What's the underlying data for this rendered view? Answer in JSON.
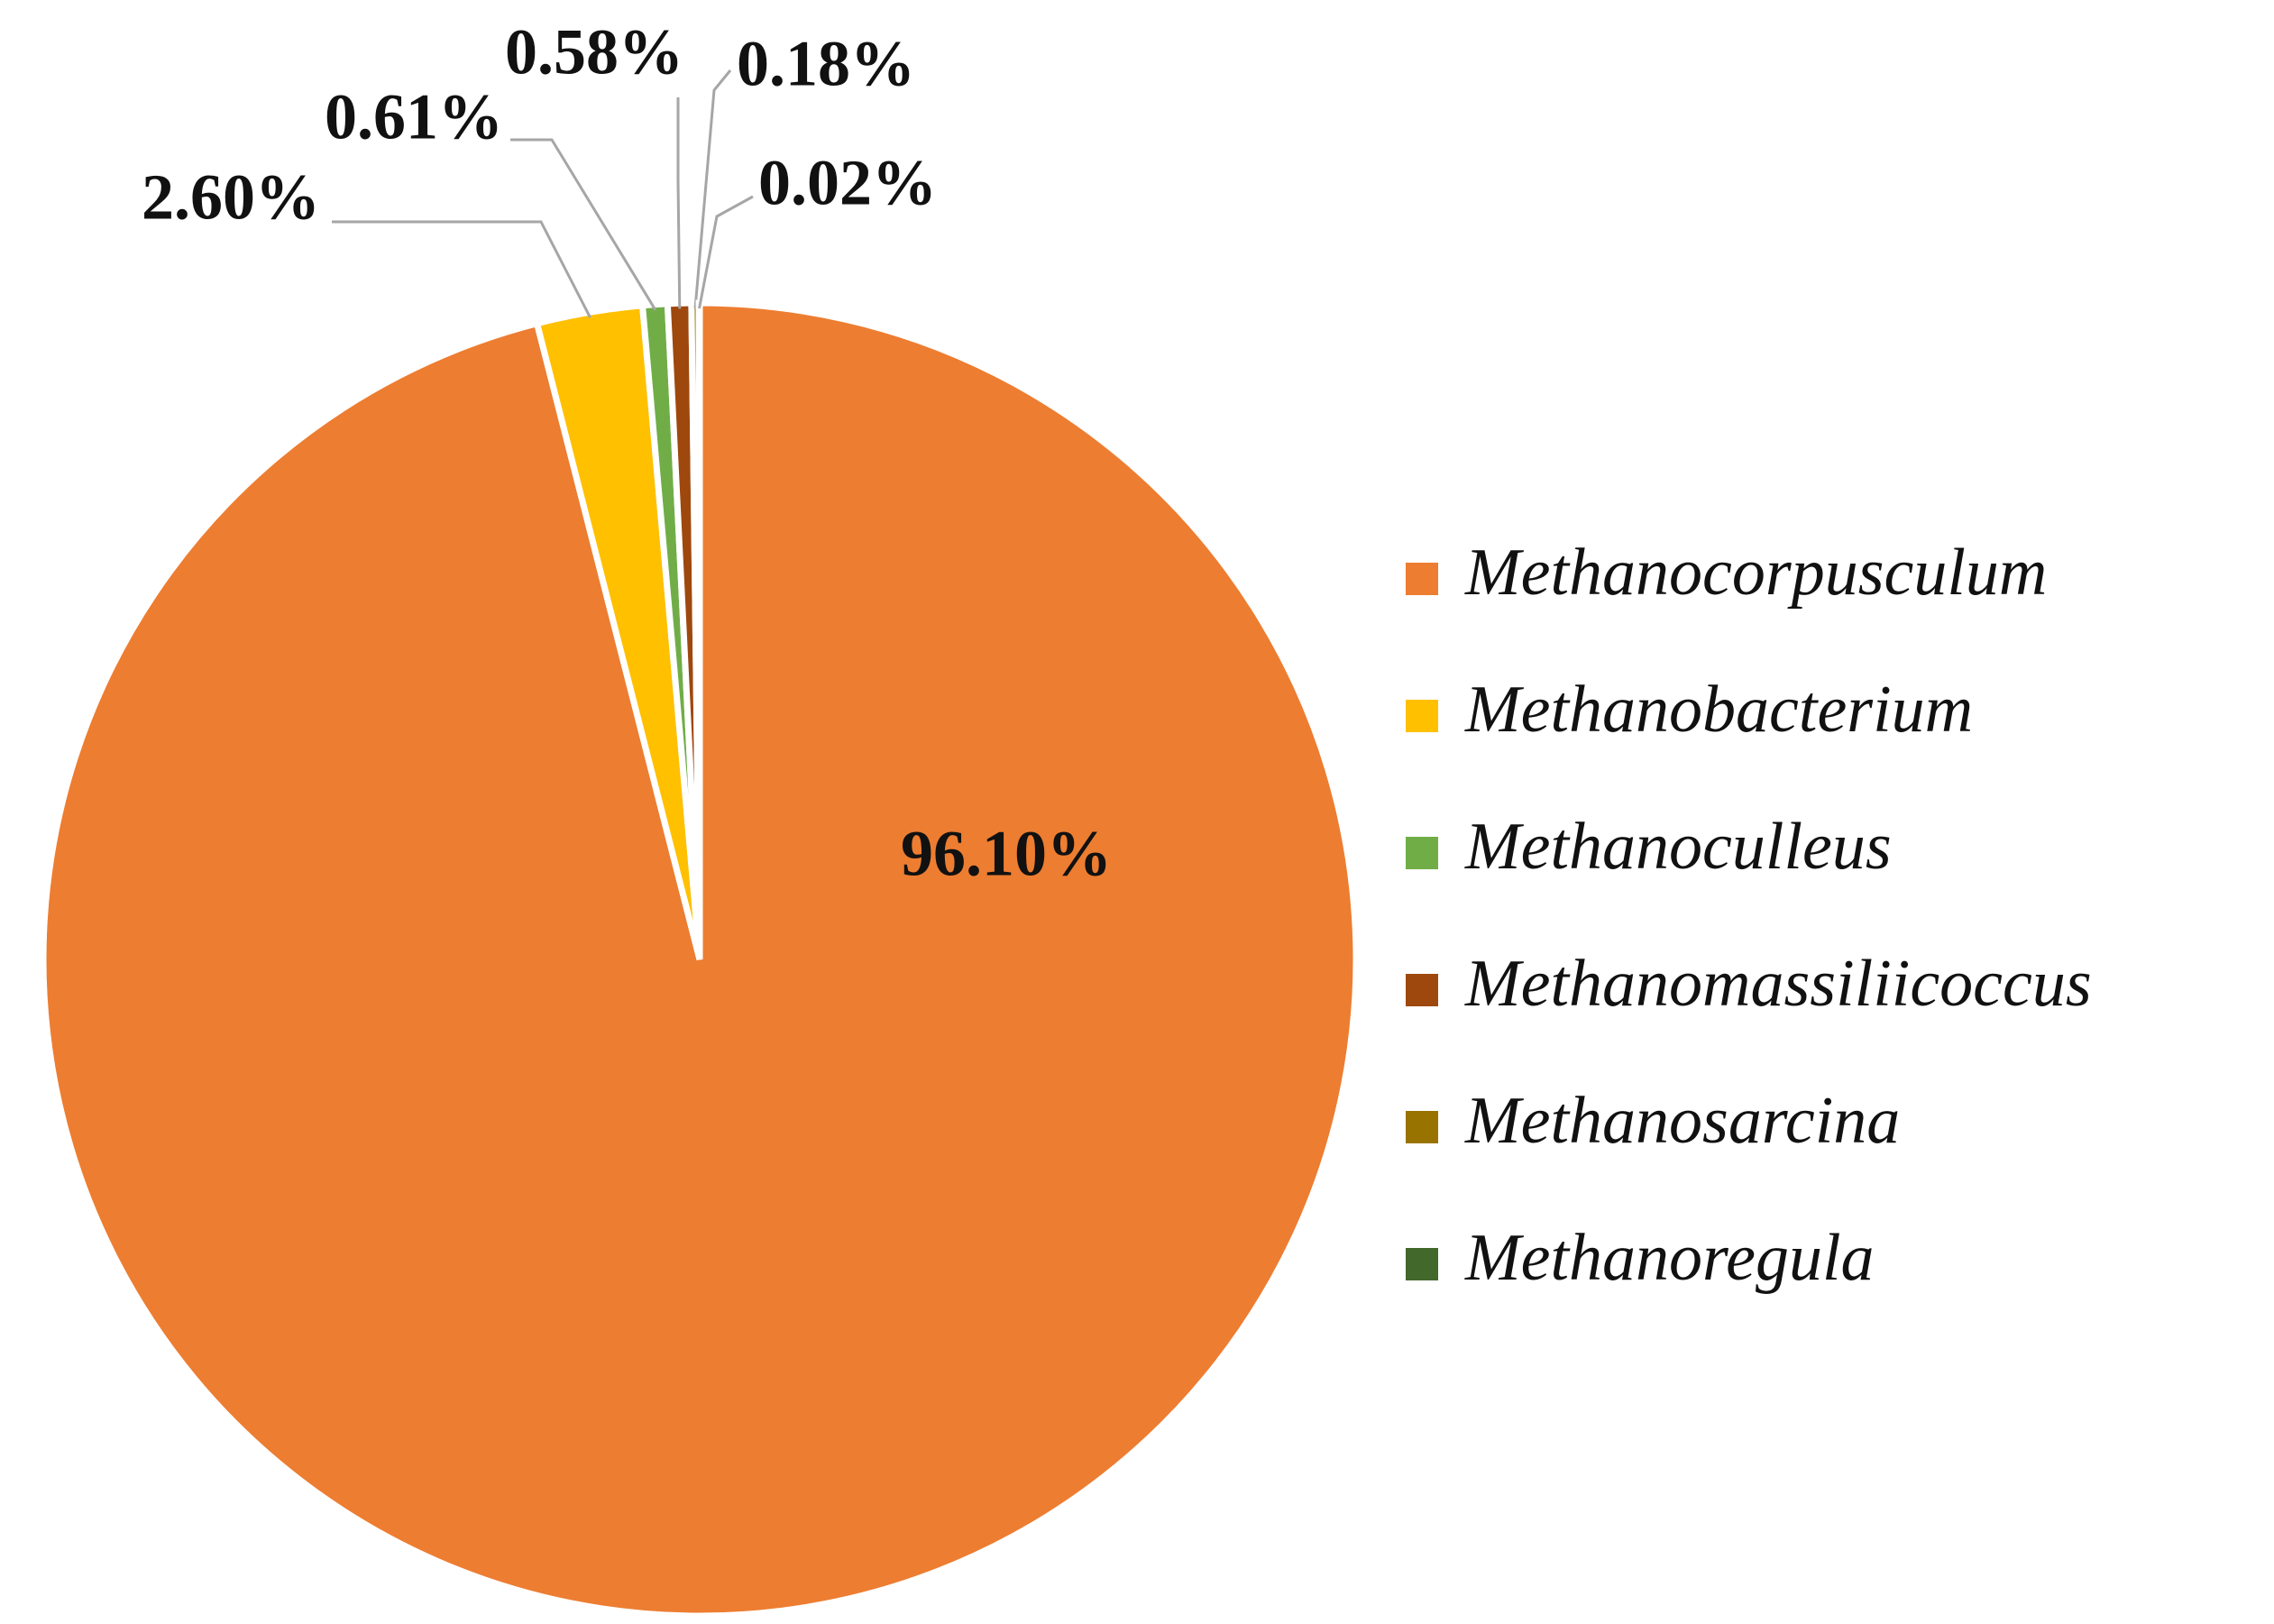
{
  "chart_data": {
    "type": "pie",
    "categories": [
      "Methanocorpusculum",
      "Methanobacterium",
      "Methanoculleus",
      "Methanomassiliicoccus",
      "Methanosarcina",
      "Methanoregula"
    ],
    "values": [
      96.1,
      2.6,
      0.61,
      0.58,
      0.18,
      0.02
    ],
    "value_labels": [
      "96.10%",
      "2.60%",
      "0.61%",
      "0.58%",
      "0.18%",
      "0.02%"
    ],
    "colors": [
      "#ED7D31",
      "#FFC000",
      "#70AD47",
      "#9E480E",
      "#997300",
      "#43682B"
    ],
    "legend": "right"
  }
}
